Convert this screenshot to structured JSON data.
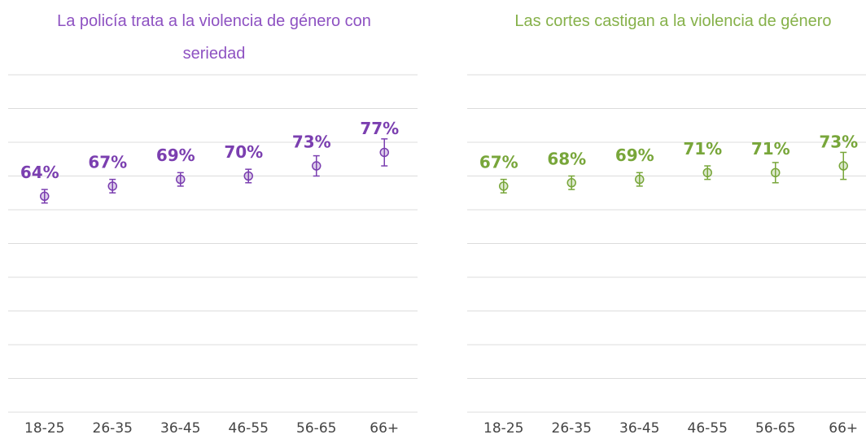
{
  "chart_data": [
    {
      "type": "errordot",
      "title": "La policía trata a la violencia de género con seriedad",
      "categories": [
        "18-25",
        "26-35",
        "36-45",
        "46-55",
        "56-65",
        "66+"
      ],
      "values": [
        64,
        67,
        69,
        70,
        73,
        77
      ],
      "value_labels": [
        "64%",
        "67%",
        "69%",
        "70%",
        "73%",
        "77%"
      ],
      "errors": [
        2,
        2,
        2,
        2,
        3,
        4
      ],
      "color": "#7b3fb0",
      "title_color": "#8e52c2",
      "ylim": [
        0,
        100
      ],
      "yticks": [
        0,
        10,
        20,
        30,
        40,
        50,
        60,
        70,
        80,
        90,
        100
      ],
      "grid": true
    },
    {
      "type": "errordot",
      "title": "Las cortes castigan a la violencia de género",
      "categories": [
        "18-25",
        "26-35",
        "36-45",
        "46-55",
        "56-65",
        "66+"
      ],
      "values": [
        67,
        68,
        69,
        71,
        71,
        73
      ],
      "value_labels": [
        "67%",
        "68%",
        "69%",
        "71%",
        "71%",
        "73%"
      ],
      "errors": [
        2,
        2,
        2,
        2,
        3,
        4
      ],
      "color": "#78a63a",
      "title_color": "#86b14a",
      "ylim": [
        0,
        100
      ],
      "yticks": [
        0,
        10,
        20,
        30,
        40,
        50,
        60,
        70,
        80,
        90,
        100
      ],
      "grid": true
    }
  ]
}
